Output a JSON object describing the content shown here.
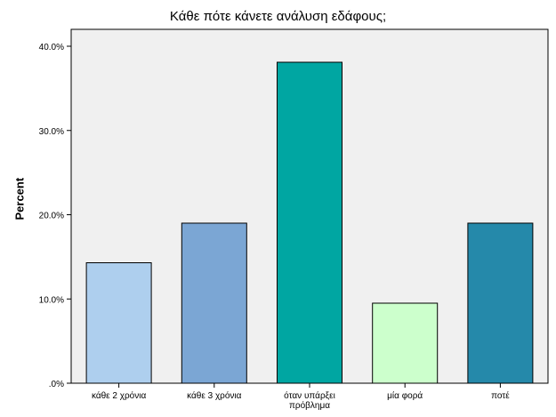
{
  "chart_data": {
    "type": "bar",
    "title": "Κάθε πότε κάνετε ανάλυση εδάφους;",
    "ylabel": "Percent",
    "xlabel": "",
    "categories": [
      [
        "κάθε 2 χρόνια"
      ],
      [
        "κάθε 3 χρόνια"
      ],
      [
        "όταν υπάρξει",
        "πρόβλημα"
      ],
      [
        "μία φορά"
      ],
      [
        "ποτέ"
      ]
    ],
    "values": [
      14.3,
      19.0,
      38.1,
      9.5,
      19.0
    ],
    "colors": [
      "#aecfee",
      "#7ba6d4",
      "#00a6a2",
      "#ccffcc",
      "#2589aa"
    ],
    "yticks": [
      0,
      10,
      20,
      30,
      40
    ],
    "ytick_labels": [
      ".0%",
      "10.0%",
      "20.0%",
      "30.0%",
      "40.0%"
    ],
    "ylim": [
      0,
      40
    ],
    "plot_background": "#f0f0f0",
    "grid": false
  }
}
